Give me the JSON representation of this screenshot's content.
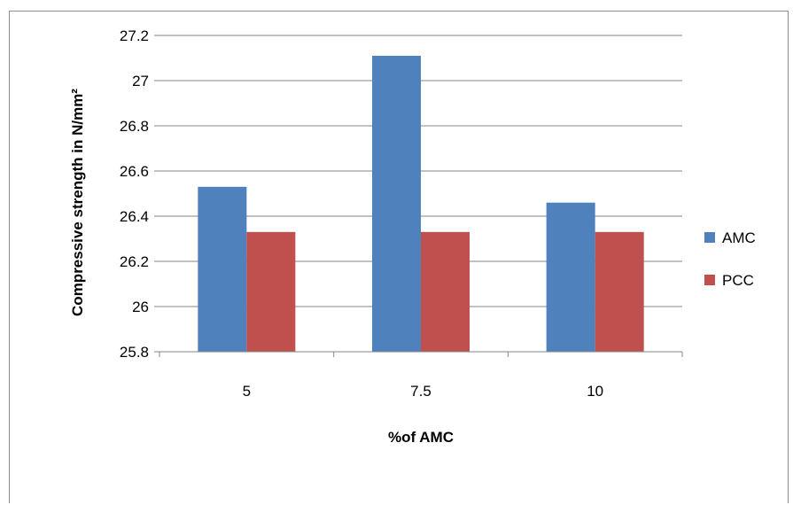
{
  "chart_data": {
    "type": "bar",
    "title": "",
    "xlabel": "%of AMC",
    "ylabel": "Compressive strength in N/mm²",
    "categories": [
      "5",
      "7.5",
      "10"
    ],
    "series": [
      {
        "name": "AMC",
        "color": "#4f81bd",
        "values": [
          26.53,
          27.11,
          26.46
        ]
      },
      {
        "name": "PCC",
        "color": "#c0504d",
        "values": [
          26.33,
          26.33,
          26.33
        ]
      }
    ],
    "ylim": [
      25.8,
      27.2
    ],
    "yticks": [
      "25.8",
      "26",
      "26.2",
      "26.4",
      "26.6",
      "26.8",
      "27",
      "27.2"
    ],
    "grid": true,
    "legend_position": "right"
  }
}
